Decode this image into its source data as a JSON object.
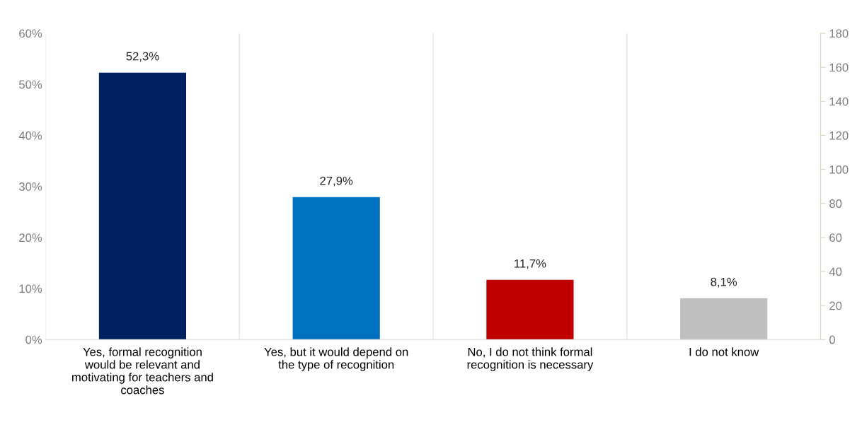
{
  "chart_data": {
    "type": "bar",
    "categories": [
      "Yes, formal recognition\nwould be relevant and\nmotivating for teachers and\ncoaches",
      "Yes, but it would depend on\nthe type of recognition",
      "No, I do not think formal\nrecognition is necessary",
      "I do not know"
    ],
    "values": [
      52.3,
      27.9,
      11.7,
      8.1
    ],
    "value_labels": [
      "52,3%",
      "27,9%",
      "11,7%",
      "8,1%"
    ],
    "colors": [
      "#002060",
      "#0070c0",
      "#c00000",
      "#bfbfbf"
    ],
    "ylim": [
      0,
      60
    ],
    "yticks": [
      {
        "value": 0,
        "label": "0%"
      },
      {
        "value": 10,
        "label": "10%"
      },
      {
        "value": 20,
        "label": "20%"
      },
      {
        "value": 30,
        "label": "30%"
      },
      {
        "value": 40,
        "label": "40%"
      },
      {
        "value": 50,
        "label": "50%"
      },
      {
        "value": 60,
        "label": "60%"
      }
    ],
    "y2lim": [
      0,
      180
    ],
    "y2ticks": [
      0,
      20,
      40,
      60,
      80,
      100,
      120,
      140,
      160,
      180
    ],
    "grid": "x",
    "legend": false
  }
}
